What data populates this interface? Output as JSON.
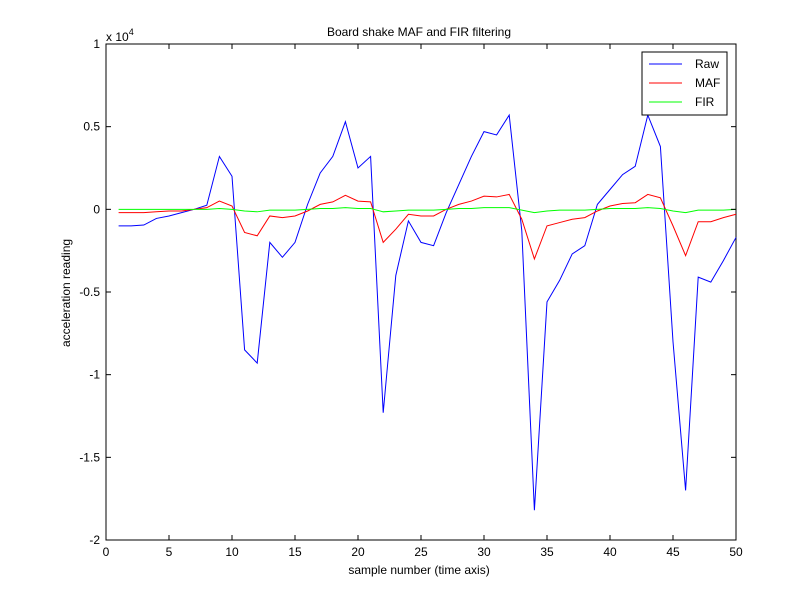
{
  "chart_data": {
    "type": "line",
    "title": "Board shake MAF and FIR filtering",
    "xlabel": "sample number (time axis)",
    "ylabel": "acceleration reading",
    "y_multiplier": "x 10",
    "y_exponent": "4",
    "xlim": [
      0,
      50
    ],
    "ylim": [
      -20000,
      10000
    ],
    "xticks": [
      0,
      5,
      10,
      15,
      20,
      25,
      30,
      35,
      40,
      45,
      50
    ],
    "xtick_labels": [
      "0",
      "5",
      "10",
      "15",
      "20",
      "25",
      "30",
      "35",
      "40",
      "45",
      "50"
    ],
    "yticks": [
      -20000,
      -15000,
      -10000,
      -5000,
      0,
      5000,
      10000
    ],
    "ytick_labels": [
      "-2",
      "-1.5",
      "-1",
      "-0.5",
      "0",
      "0.5",
      "1"
    ],
    "grid": false,
    "legend_position": "top-right",
    "x": [
      1,
      2,
      3,
      4,
      5,
      6,
      7,
      8,
      9,
      10,
      11,
      12,
      13,
      14,
      15,
      16,
      17,
      18,
      19,
      20,
      21,
      22,
      23,
      24,
      25,
      26,
      27,
      28,
      29,
      30,
      31,
      32,
      33,
      34,
      35,
      36,
      37,
      38,
      39,
      40,
      41,
      42,
      43,
      44,
      45,
      46,
      47,
      48,
      49,
      50
    ],
    "series": [
      {
        "name": "Raw",
        "color": "#0000ff",
        "values": [
          -1000,
          -1000,
          -950,
          -550,
          -400,
          -200,
          0,
          250,
          3200,
          2000,
          -8500,
          -9300,
          -2000,
          -2900,
          -2000,
          300,
          2200,
          3200,
          5300,
          2500,
          3200,
          -12300,
          -4000,
          -700,
          -2000,
          -2200,
          -200,
          1500,
          3200,
          4700,
          4500,
          5700,
          -1300,
          -18200,
          -5600,
          -4300,
          -2700,
          -2200,
          300,
          1200,
          2100,
          2600,
          5700,
          3800,
          -8000,
          -17000,
          -4100,
          -4400,
          -3100,
          -1700
        ]
      },
      {
        "name": "MAF",
        "color": "#ff0000",
        "values": [
          -200,
          -200,
          -200,
          -150,
          -100,
          -100,
          0,
          100,
          500,
          200,
          -1400,
          -1600,
          -400,
          -500,
          -400,
          -100,
          300,
          450,
          850,
          500,
          450,
          -2000,
          -1200,
          -300,
          -400,
          -400,
          0,
          300,
          500,
          800,
          750,
          900,
          -600,
          -3000,
          -1000,
          -800,
          -600,
          -500,
          -100,
          200,
          350,
          400,
          900,
          700,
          -1000,
          -2800,
          -750,
          -750,
          -500,
          -300
        ]
      },
      {
        "name": "FIR",
        "color": "#00ff00",
        "values": [
          0,
          0,
          0,
          0,
          0,
          0,
          0,
          0,
          50,
          0,
          -100,
          -150,
          -50,
          -50,
          -50,
          0,
          50,
          50,
          100,
          50,
          50,
          -150,
          -100,
          -50,
          -50,
          -50,
          0,
          50,
          50,
          100,
          100,
          100,
          -50,
          -200,
          -100,
          -50,
          -50,
          -50,
          0,
          50,
          50,
          50,
          100,
          50,
          -100,
          -200,
          -50,
          -50,
          -50,
          0
        ]
      }
    ]
  }
}
